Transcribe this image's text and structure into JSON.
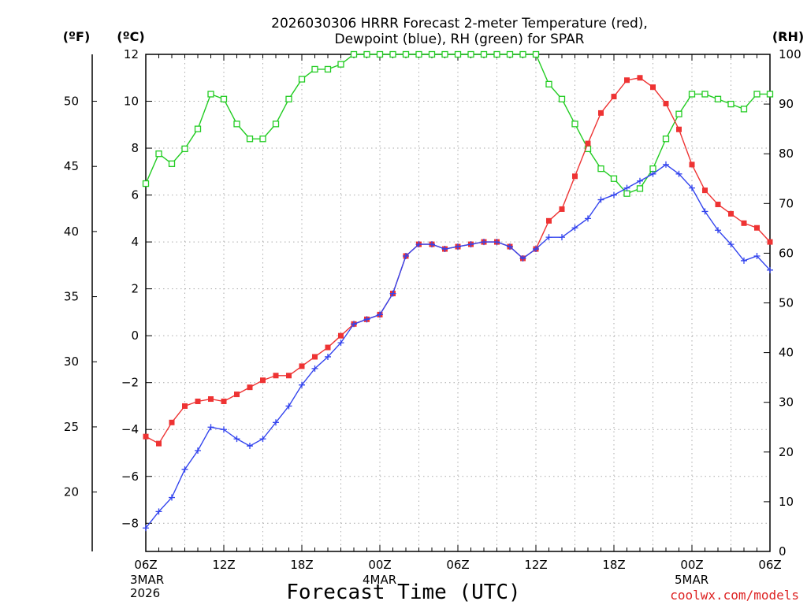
{
  "chart_data": {
    "type": "line",
    "title_line1": "2026030306 HRRR Forecast 2-meter Temperature (red),",
    "title_line2": "Dewpoint (blue), RH (green) for SPAR",
    "xlabel": "Forecast Time (UTC)",
    "unit_f": "(ºF)",
    "unit_c": "(ºC)",
    "unit_rh": "(RH)",
    "credit": "coolwx.com/models",
    "x_range_hours": [
      0,
      48
    ],
    "ylim_c": [
      -9.2,
      12
    ],
    "ylim_rh": [
      0,
      100
    ],
    "c_ticks": [
      -8,
      -6,
      -4,
      -2,
      0,
      2,
      4,
      6,
      8,
      10,
      12
    ],
    "c_tick_labels": [
      "−8",
      "−6",
      "−4",
      "−2",
      "0",
      "2",
      "4",
      "6",
      "8",
      "10",
      "12"
    ],
    "f_ticks": [
      20,
      25,
      30,
      35,
      40,
      45,
      50
    ],
    "rh_ticks": [
      0,
      10,
      20,
      30,
      40,
      50,
      60,
      70,
      80,
      90,
      100
    ],
    "x_ticks": [
      {
        "hour": 0,
        "label": "06Z",
        "date1": "3MAR",
        "date2": "2026"
      },
      {
        "hour": 6,
        "label": "12Z"
      },
      {
        "hour": 12,
        "label": "18Z"
      },
      {
        "hour": 18,
        "label": "00Z",
        "date1": "4MAR"
      },
      {
        "hour": 24,
        "label": "06Z"
      },
      {
        "hour": 30,
        "label": "12Z"
      },
      {
        "hour": 36,
        "label": "18Z"
      },
      {
        "hour": 42,
        "label": "00Z",
        "date1": "5MAR"
      },
      {
        "hour": 48,
        "label": "06Z"
      }
    ],
    "series": [
      {
        "name": "Temperature",
        "unit": "C",
        "color": "#ee3333",
        "marker": "filled-square",
        "values": [
          -4.3,
          -4.6,
          -3.7,
          -3.0,
          -2.8,
          -2.7,
          -2.8,
          -2.5,
          -2.2,
          -1.9,
          -1.7,
          -1.7,
          -1.3,
          -0.9,
          -0.5,
          0.0,
          0.5,
          0.7,
          0.9,
          1.8,
          3.4,
          3.9,
          3.9,
          3.7,
          3.8,
          3.9,
          4.0,
          4.0,
          3.8,
          3.3,
          3.7,
          4.9,
          5.4,
          6.8,
          8.2,
          9.5,
          10.2,
          10.9,
          11.0,
          10.6,
          9.9,
          8.8,
          7.3,
          6.2,
          5.6,
          5.2,
          4.8,
          4.6,
          4.0
        ]
      },
      {
        "name": "Dewpoint",
        "unit": "C",
        "color": "#3344ee",
        "marker": "plus",
        "values": [
          -8.2,
          -7.5,
          -6.9,
          -5.7,
          -4.9,
          -3.9,
          -4.0,
          -4.4,
          -4.7,
          -4.4,
          -3.7,
          -3.0,
          -2.1,
          -1.4,
          -0.9,
          -0.3,
          0.5,
          0.7,
          0.9,
          1.8,
          3.4,
          3.9,
          3.9,
          3.7,
          3.8,
          3.9,
          4.0,
          4.0,
          3.8,
          3.3,
          3.7,
          4.2,
          4.2,
          4.6,
          5.0,
          5.8,
          6.0,
          6.3,
          6.6,
          6.9,
          7.3,
          6.9,
          6.3,
          5.3,
          4.5,
          3.9,
          3.2,
          3.4,
          2.8
        ]
      },
      {
        "name": "RH",
        "unit": "%",
        "color": "#22cc22",
        "marker": "open-square",
        "values": [
          74,
          80,
          78,
          81,
          85,
          92,
          91,
          86,
          83,
          83,
          86,
          91,
          95,
          97,
          97,
          98,
          100,
          100,
          100,
          100,
          100,
          100,
          100,
          100,
          100,
          100,
          100,
          100,
          100,
          100,
          100,
          94,
          91,
          86,
          81,
          77,
          75,
          72,
          73,
          77,
          83,
          88,
          92,
          92,
          91,
          90,
          89,
          92,
          92
        ]
      }
    ]
  }
}
